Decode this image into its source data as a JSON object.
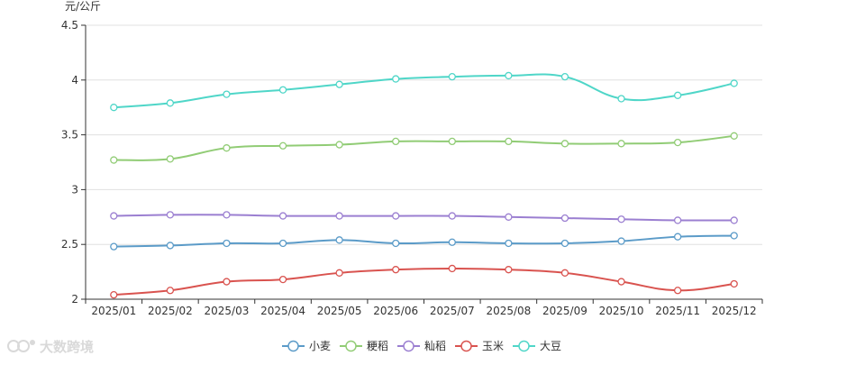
{
  "chart_data": {
    "type": "line",
    "title": "",
    "xlabel": "",
    "ylabel": "元/公斤",
    "categories": [
      "2025/01",
      "2025/02",
      "2025/03",
      "2025/04",
      "2025/05",
      "2025/06",
      "2025/07",
      "2025/08",
      "2025/09",
      "2025/10",
      "2025/11",
      "2025/12"
    ],
    "ylim": [
      2,
      4.5
    ],
    "yticks": [
      "2",
      "2.5",
      "3",
      "3.5",
      "4",
      "4.5"
    ],
    "grid": true,
    "smooth": true,
    "legend_position": "bottom-center",
    "series": [
      {
        "name": "小麦",
        "color": "#5b9bc8",
        "values": [
          2.48,
          2.49,
          2.51,
          2.51,
          2.54,
          2.51,
          2.52,
          2.51,
          2.51,
          2.53,
          2.57,
          2.58
        ]
      },
      {
        "name": "粳稻",
        "color": "#91cc75",
        "values": [
          3.27,
          3.28,
          3.38,
          3.4,
          3.41,
          3.44,
          3.44,
          3.44,
          3.42,
          3.42,
          3.43,
          3.49
        ]
      },
      {
        "name": "籼稻",
        "color": "#9b7fd1",
        "values": [
          2.76,
          2.77,
          2.77,
          2.76,
          2.76,
          2.76,
          2.76,
          2.75,
          2.74,
          2.73,
          2.72,
          2.72
        ]
      },
      {
        "name": "玉米",
        "color": "#d9534f",
        "values": [
          2.04,
          2.08,
          2.16,
          2.18,
          2.24,
          2.27,
          2.28,
          2.27,
          2.24,
          2.16,
          2.08,
          2.14
        ]
      },
      {
        "name": "大豆",
        "color": "#4fd6c8",
        "values": [
          3.75,
          3.79,
          3.87,
          3.91,
          3.96,
          4.01,
          4.03,
          4.04,
          4.03,
          3.83,
          3.86,
          3.97
        ]
      }
    ]
  },
  "watermark": {
    "text": "大数跨境",
    "icon": "brand-logo-icon"
  }
}
